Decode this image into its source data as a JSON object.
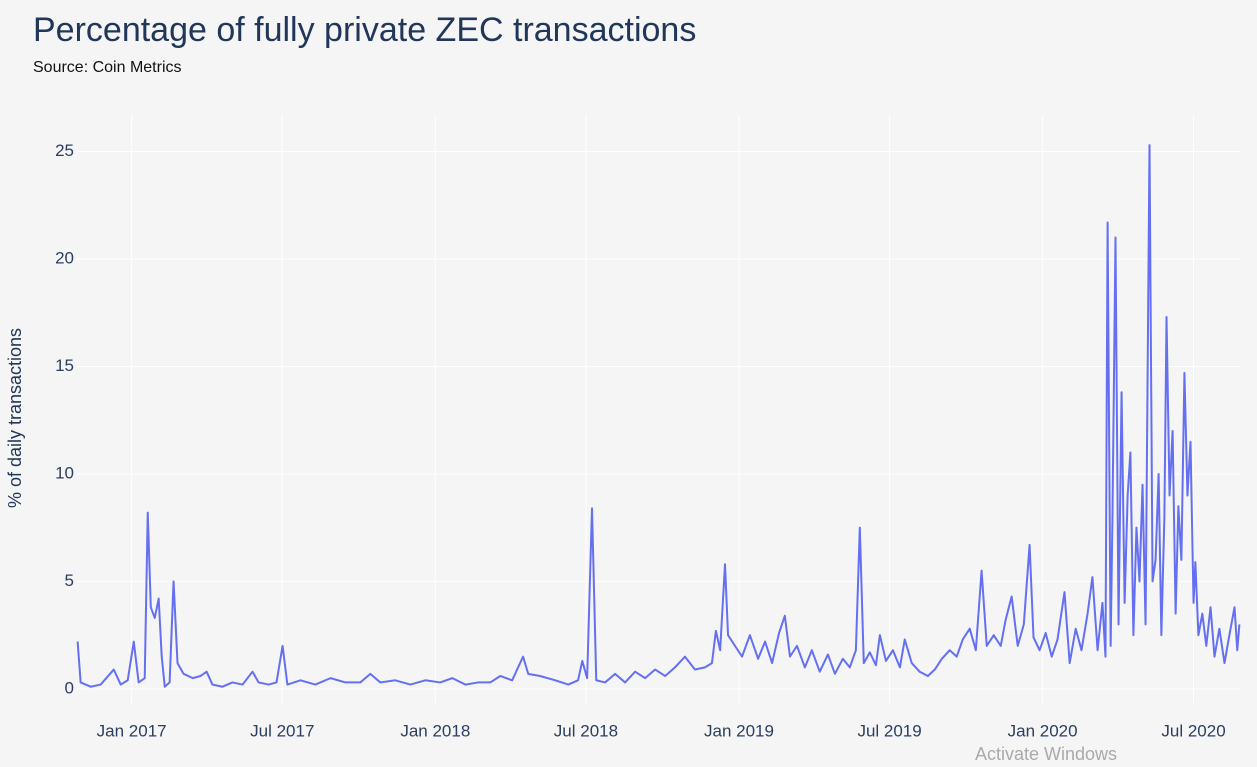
{
  "chart_data": {
    "type": "line",
    "title": "Percentage of fully private ZEC transactions",
    "subtitle": "Source: Coin Metrics",
    "y_label": "% of daily transactions",
    "watermark": "Activate Windows",
    "color": "#6470f0",
    "grid": true,
    "xlim": [
      2016.82,
      2020.65
    ],
    "ylim": [
      -0.75,
      26.7
    ],
    "xticks": [
      {
        "value": 2017,
        "label": "Jan 2017"
      },
      {
        "value": 2017.496,
        "label": "Jul 2017"
      },
      {
        "value": 2018,
        "label": "Jan 2018"
      },
      {
        "value": 2018.496,
        "label": "Jul 2018"
      },
      {
        "value": 2019,
        "label": "Jan 2019"
      },
      {
        "value": 2019.496,
        "label": "Jul 2019"
      },
      {
        "value": 2020,
        "label": "Jan 2020"
      },
      {
        "value": 2020.497,
        "label": "Jul 2020"
      }
    ],
    "yticks": [
      0,
      5,
      10,
      15,
      20,
      25
    ],
    "x": [
      2016.822,
      2016.832,
      2016.865,
      2016.898,
      2016.941,
      2016.964,
      2016.987,
      2017.007,
      2017.023,
      2017.043,
      2017.053,
      2017.063,
      2017.076,
      2017.089,
      2017.099,
      2017.109,
      2017.125,
      2017.138,
      2017.151,
      2017.171,
      2017.201,
      2017.227,
      2017.247,
      2017.266,
      2017.299,
      2017.332,
      2017.365,
      2017.398,
      2017.418,
      2017.451,
      2017.477,
      2017.497,
      2017.513,
      2017.556,
      2017.605,
      2017.655,
      2017.704,
      2017.753,
      2017.786,
      2017.819,
      2017.868,
      2017.918,
      2017.967,
      2018.016,
      2018.056,
      2018.099,
      2018.141,
      2018.181,
      2018.214,
      2018.253,
      2018.289,
      2018.306,
      2018.345,
      2018.395,
      2018.438,
      2018.47,
      2018.484,
      2018.5,
      2018.516,
      2018.53,
      2018.559,
      2018.592,
      2018.625,
      2018.658,
      2018.691,
      2018.724,
      2018.757,
      2018.789,
      2018.822,
      2018.855,
      2018.888,
      2018.911,
      2018.924,
      2018.938,
      2018.954,
      2018.964,
      2018.987,
      2019.01,
      2019.036,
      2019.063,
      2019.086,
      2019.109,
      2019.132,
      2019.151,
      2019.168,
      2019.191,
      2019.217,
      2019.24,
      2019.266,
      2019.293,
      2019.316,
      2019.342,
      2019.365,
      2019.385,
      2019.398,
      2019.411,
      2019.431,
      2019.451,
      2019.464,
      2019.484,
      2019.507,
      2019.53,
      2019.546,
      2019.569,
      2019.595,
      2019.622,
      2019.645,
      2019.668,
      2019.694,
      2019.717,
      2019.737,
      2019.76,
      2019.78,
      2019.799,
      2019.816,
      2019.839,
      2019.862,
      2019.878,
      2019.898,
      2019.918,
      2019.938,
      2019.957,
      2019.97,
      2019.99,
      2020.01,
      2020.03,
      2020.049,
      2020.072,
      2020.089,
      2020.109,
      2020.128,
      2020.148,
      2020.164,
      2020.181,
      2020.197,
      2020.207,
      2020.214,
      2020.224,
      2020.23,
      2020.24,
      2020.25,
      2020.26,
      2020.27,
      2020.28,
      2020.289,
      2020.299,
      2020.309,
      2020.319,
      2020.329,
      2020.339,
      2020.352,
      2020.362,
      2020.372,
      2020.382,
      2020.391,
      2020.401,
      2020.408,
      2020.418,
      2020.428,
      2020.438,
      2020.447,
      2020.457,
      2020.467,
      2020.477,
      2020.487,
      2020.497,
      2020.503,
      2020.513,
      2020.526,
      2020.539,
      2020.553,
      2020.566,
      2020.582,
      2020.599,
      2020.615,
      2020.632,
      2020.641,
      2020.648
    ],
    "values": [
      2.2,
      0.3,
      0.1,
      0.2,
      0.9,
      0.2,
      0.4,
      2.2,
      0.3,
      0.5,
      8.2,
      3.8,
      3.3,
      4.2,
      1.5,
      0.1,
      0.3,
      5.0,
      1.2,
      0.7,
      0.5,
      0.6,
      0.8,
      0.2,
      0.1,
      0.3,
      0.2,
      0.8,
      0.3,
      0.2,
      0.3,
      2.0,
      0.2,
      0.4,
      0.2,
      0.5,
      0.3,
      0.3,
      0.7,
      0.3,
      0.4,
      0.2,
      0.4,
      0.3,
      0.5,
      0.2,
      0.3,
      0.3,
      0.6,
      0.4,
      1.5,
      0.7,
      0.6,
      0.4,
      0.2,
      0.4,
      1.3,
      0.5,
      8.4,
      0.4,
      0.3,
      0.7,
      0.3,
      0.8,
      0.5,
      0.9,
      0.6,
      1.0,
      1.5,
      0.9,
      1.0,
      1.2,
      2.7,
      1.8,
      5.8,
      2.5,
      2.0,
      1.5,
      2.5,
      1.4,
      2.2,
      1.2,
      2.6,
      3.4,
      1.5,
      2.0,
      1.0,
      1.8,
      0.8,
      1.6,
      0.7,
      1.4,
      1.0,
      1.8,
      7.5,
      1.2,
      1.7,
      1.1,
      2.5,
      1.3,
      1.8,
      1.0,
      2.3,
      1.2,
      0.8,
      0.6,
      0.9,
      1.4,
      1.8,
      1.5,
      2.3,
      2.8,
      1.8,
      5.5,
      2.0,
      2.5,
      2.0,
      3.2,
      4.3,
      2.0,
      3.0,
      6.7,
      2.4,
      1.8,
      2.6,
      1.5,
      2.3,
      4.5,
      1.2,
      2.8,
      1.8,
      3.5,
      5.2,
      1.8,
      4.0,
      1.5,
      21.7,
      2.0,
      8.0,
      21.0,
      3.0,
      13.8,
      4.0,
      9.0,
      11.0,
      2.5,
      7.5,
      5.0,
      9.5,
      3.0,
      25.3,
      5.0,
      6.0,
      10.0,
      2.5,
      8.0,
      17.3,
      9.0,
      12.0,
      3.5,
      8.5,
      6.0,
      14.7,
      9.0,
      11.5,
      4.0,
      5.9,
      2.5,
      3.5,
      2.0,
      3.8,
      1.5,
      2.8,
      1.2,
      2.5,
      3.8,
      1.8,
      3.0
    ]
  }
}
